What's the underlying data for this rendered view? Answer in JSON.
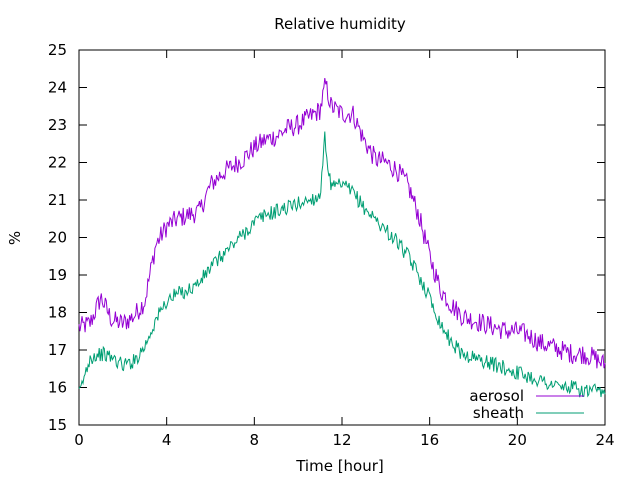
{
  "chart_data": {
    "type": "line",
    "title": "Relative humidity",
    "xlabel": "Time [hour]",
    "ylabel": "%",
    "xlim": [
      0,
      24
    ],
    "ylim": [
      15,
      25
    ],
    "xticks": [
      0,
      4,
      8,
      12,
      16,
      20,
      24
    ],
    "yticks": [
      15,
      16,
      17,
      18,
      19,
      20,
      21,
      22,
      23,
      24,
      25
    ],
    "grid": false,
    "legend_position": "bottom-right",
    "series": [
      {
        "name": "aerosol",
        "color": "#9400d3",
        "x": [
          0,
          0.5,
          1,
          1.5,
          2,
          2.5,
          3,
          3.5,
          4,
          4.5,
          5,
          5.5,
          6,
          6.5,
          7,
          7.5,
          8,
          8.5,
          9,
          9.5,
          10,
          10.5,
          11,
          11.25,
          11.5,
          12,
          12.5,
          13,
          13.5,
          14,
          14.5,
          15,
          15.5,
          16,
          16.5,
          17,
          17.5,
          18,
          18.5,
          19,
          19.5,
          20,
          20.5,
          21,
          21.5,
          22,
          22.5,
          23,
          23.5,
          24
        ],
        "y": [
          17.6,
          17.7,
          18.4,
          17.8,
          17.7,
          17.9,
          18.3,
          19.8,
          20.3,
          20.5,
          20.6,
          20.7,
          21.4,
          21.7,
          21.9,
          22.1,
          22.4,
          22.6,
          22.7,
          22.9,
          23.0,
          23.2,
          23.4,
          24.1,
          23.5,
          23.3,
          23.3,
          22.6,
          22.1,
          22.0,
          21.8,
          21.4,
          20.6,
          19.5,
          18.6,
          18.2,
          17.9,
          17.8,
          17.7,
          17.6,
          17.5,
          17.5,
          17.4,
          17.2,
          17.1,
          17.0,
          16.9,
          16.9,
          16.8,
          16.6
        ]
      },
      {
        "name": "sheath",
        "color": "#009e73",
        "x": [
          0,
          0.5,
          1,
          1.5,
          2,
          2.5,
          3,
          3.5,
          4,
          4.5,
          5,
          5.5,
          6,
          6.5,
          7,
          7.5,
          8,
          8.5,
          9,
          9.5,
          10,
          10.5,
          11,
          11.2,
          11.5,
          12,
          12.5,
          13,
          13.5,
          14,
          14.5,
          15,
          15.5,
          16,
          16.5,
          17,
          17.5,
          18,
          18.5,
          19,
          19.5,
          20,
          20.5,
          21,
          21.5,
          22,
          22.5,
          23,
          23.5,
          24
        ],
        "y": [
          15.8,
          16.8,
          16.9,
          16.8,
          16.6,
          16.7,
          17.1,
          17.8,
          18.3,
          18.5,
          18.6,
          18.8,
          19.2,
          19.5,
          19.8,
          20.1,
          20.4,
          20.6,
          20.7,
          20.8,
          20.9,
          21.0,
          21.1,
          22.7,
          21.3,
          21.4,
          21.2,
          20.8,
          20.5,
          20.2,
          19.9,
          19.5,
          19.0,
          18.4,
          17.7,
          17.2,
          16.9,
          16.8,
          16.7,
          16.6,
          16.5,
          16.4,
          16.3,
          16.2,
          16.1,
          16.0,
          16.0,
          15.9,
          15.9,
          15.8
        ]
      }
    ]
  }
}
